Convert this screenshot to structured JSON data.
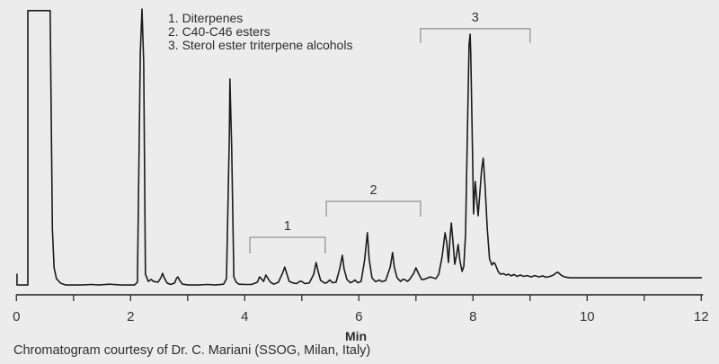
{
  "figure": {
    "background_color": "#ececec",
    "caption": "Chromatogram courtesy of Dr. C. Mariani (SSOG, Milan, Italy)"
  },
  "colors": {
    "trace": "#1b1b1b",
    "axis": "#3a3a3a",
    "tick_label": "#333333",
    "bracket": "#9c9c9c",
    "bracket_label": "#333333"
  },
  "chart_data": {
    "type": "line",
    "title": "",
    "xlabel": "Min",
    "ylabel": "",
    "xlim": [
      0,
      12
    ],
    "grid": false,
    "x_ticks": [
      0,
      1,
      2,
      3,
      4,
      5,
      6,
      7,
      8,
      9,
      10,
      11,
      12
    ],
    "x_tick_labels": [
      {
        "value": 0,
        "label": "0"
      },
      {
        "value": 2,
        "label": "2"
      },
      {
        "value": 4,
        "label": "4"
      },
      {
        "value": 6,
        "label": "6"
      },
      {
        "value": 8,
        "label": "8"
      },
      {
        "value": 10,
        "label": "10"
      },
      {
        "value": 12,
        "label": "12"
      }
    ],
    "peak_groups": [
      {
        "number": "1",
        "label": "1. Diterpenes",
        "t_start": 4.09,
        "t_end": 5.41,
        "bracket_top_signal": 17.5,
        "bracket_drop_signal": 11.7
      },
      {
        "number": "2",
        "label": "2. C40-C46 esters",
        "t_start": 5.43,
        "t_end": 7.08,
        "bracket_top_signal": 30.5,
        "bracket_drop_signal": 25.0
      },
      {
        "number": "3",
        "label": "3. Sterol ester triterpene alcohols",
        "t_start": 7.08,
        "t_end": 9.0,
        "bracket_top_signal": 92.9,
        "bracket_drop_signal": 87.7
      }
    ],
    "major_peaks_min": [
      0.4,
      2.2,
      2.56,
      2.83,
      3.74,
      4.28,
      4.4,
      4.7,
      5.25,
      5.71,
      6.15,
      6.59,
      7.0,
      7.51,
      7.62,
      7.74,
      7.95,
      8.04,
      8.18,
      9.49
    ],
    "signal_axis": "arbitrary units, 0-100 of full scale",
    "trace": [
      [
        0.01,
        4.2
      ],
      [
        0.01,
        0.3
      ],
      [
        0.2,
        0.3
      ],
      [
        0.2,
        99.4
      ],
      [
        0.59,
        99.4
      ],
      [
        0.63,
        20.5
      ],
      [
        0.66,
        6.5
      ],
      [
        0.7,
        2.6
      ],
      [
        0.77,
        1.0
      ],
      [
        0.86,
        0.3
      ],
      [
        1.13,
        0.3
      ],
      [
        1.32,
        0.5
      ],
      [
        1.44,
        0.3
      ],
      [
        1.63,
        0.6
      ],
      [
        1.84,
        0.3
      ],
      [
        2.07,
        0.3
      ],
      [
        2.12,
        1.3
      ],
      [
        2.17,
        83.8
      ],
      [
        2.2,
        100
      ],
      [
        2.23,
        80.5
      ],
      [
        2.26,
        4.2
      ],
      [
        2.31,
        1.6
      ],
      [
        2.36,
        2.3
      ],
      [
        2.4,
        1.6
      ],
      [
        2.48,
        1.3
      ],
      [
        2.53,
        2.9
      ],
      [
        2.56,
        4.5
      ],
      [
        2.59,
        2.9
      ],
      [
        2.64,
        1.0
      ],
      [
        2.7,
        0.5
      ],
      [
        2.77,
        1.0
      ],
      [
        2.81,
        2.9
      ],
      [
        2.83,
        3.2
      ],
      [
        2.86,
        1.9
      ],
      [
        2.91,
        0.6
      ],
      [
        3.02,
        0.3
      ],
      [
        3.18,
        0.3
      ],
      [
        3.35,
        0.5
      ],
      [
        3.49,
        0.3
      ],
      [
        3.63,
        0.6
      ],
      [
        3.68,
        2.6
      ],
      [
        3.73,
        54.5
      ],
      [
        3.74,
        74.7
      ],
      [
        3.77,
        51.3
      ],
      [
        3.81,
        3.2
      ],
      [
        3.85,
        1.3
      ],
      [
        3.9,
        0.6
      ],
      [
        4.0,
        0.5
      ],
      [
        4.12,
        0.5
      ],
      [
        4.22,
        1.3
      ],
      [
        4.26,
        3.2
      ],
      [
        4.29,
        2.6
      ],
      [
        4.33,
        1.6
      ],
      [
        4.37,
        3.9
      ],
      [
        4.4,
        2.9
      ],
      [
        4.45,
        1.3
      ],
      [
        4.51,
        0.6
      ],
      [
        4.59,
        1.3
      ],
      [
        4.67,
        4.9
      ],
      [
        4.7,
        6.8
      ],
      [
        4.74,
        4.2
      ],
      [
        4.78,
        1.6
      ],
      [
        4.85,
        1.0
      ],
      [
        4.91,
        0.8
      ],
      [
        4.96,
        1.6
      ],
      [
        5.0,
        1.6
      ],
      [
        5.05,
        0.8
      ],
      [
        5.13,
        1.0
      ],
      [
        5.21,
        4.2
      ],
      [
        5.25,
        8.4
      ],
      [
        5.29,
        4.9
      ],
      [
        5.33,
        1.9
      ],
      [
        5.4,
        1.0
      ],
      [
        5.44,
        1.1
      ],
      [
        5.49,
        2.1
      ],
      [
        5.54,
        1.1
      ],
      [
        5.6,
        1.3
      ],
      [
        5.66,
        5.8
      ],
      [
        5.71,
        11.0
      ],
      [
        5.74,
        6.2
      ],
      [
        5.79,
        2.3
      ],
      [
        5.85,
        1.1
      ],
      [
        5.9,
        1.6
      ],
      [
        5.93,
        2.1
      ],
      [
        5.98,
        1.1
      ],
      [
        6.04,
        1.6
      ],
      [
        6.1,
        9.1
      ],
      [
        6.15,
        19.2
      ],
      [
        6.18,
        9.7
      ],
      [
        6.23,
        2.9
      ],
      [
        6.29,
        1.5
      ],
      [
        6.33,
        1.8
      ],
      [
        6.36,
        2.1
      ],
      [
        6.4,
        1.5
      ],
      [
        6.47,
        1.9
      ],
      [
        6.55,
        6.8
      ],
      [
        6.59,
        12.0
      ],
      [
        6.62,
        6.8
      ],
      [
        6.67,
        2.9
      ],
      [
        6.73,
        1.6
      ],
      [
        6.77,
        2.3
      ],
      [
        6.8,
        2.3
      ],
      [
        6.85,
        1.6
      ],
      [
        6.89,
        2.3
      ],
      [
        6.96,
        4.5
      ],
      [
        7.0,
        6.5
      ],
      [
        7.05,
        4.2
      ],
      [
        7.1,
        2.3
      ],
      [
        7.14,
        2.3
      ],
      [
        7.21,
        2.9
      ],
      [
        7.25,
        3.2
      ],
      [
        7.3,
        2.9
      ],
      [
        7.35,
        2.6
      ],
      [
        7.4,
        4.2
      ],
      [
        7.46,
        10.7
      ],
      [
        7.51,
        19.2
      ],
      [
        7.54,
        15.6
      ],
      [
        7.57,
        8.4
      ],
      [
        7.6,
        18.2
      ],
      [
        7.62,
        22.7
      ],
      [
        7.65,
        15.6
      ],
      [
        7.68,
        7.8
      ],
      [
        7.71,
        11.0
      ],
      [
        7.74,
        14.9
      ],
      [
        7.77,
        9.1
      ],
      [
        7.81,
        5.2
      ],
      [
        7.84,
        7.1
      ],
      [
        7.87,
        18.8
      ],
      [
        7.9,
        54.5
      ],
      [
        7.93,
        87.0
      ],
      [
        7.95,
        90.9
      ],
      [
        7.96,
        83.8
      ],
      [
        8.0,
        38.3
      ],
      [
        8.01,
        26.0
      ],
      [
        8.04,
        37.7
      ],
      [
        8.09,
        25.3
      ],
      [
        8.15,
        41.6
      ],
      [
        8.18,
        46.1
      ],
      [
        8.21,
        36.7
      ],
      [
        8.25,
        20.5
      ],
      [
        8.29,
        9.7
      ],
      [
        8.33,
        7.5
      ],
      [
        8.36,
        8.4
      ],
      [
        8.39,
        7.8
      ],
      [
        8.44,
        5.2
      ],
      [
        8.48,
        4.2
      ],
      [
        8.53,
        4.4
      ],
      [
        8.58,
        3.9
      ],
      [
        8.62,
        4.2
      ],
      [
        8.67,
        3.6
      ],
      [
        8.72,
        4.1
      ],
      [
        8.77,
        3.4
      ],
      [
        8.83,
        3.9
      ],
      [
        8.89,
        3.4
      ],
      [
        8.95,
        3.7
      ],
      [
        9.02,
        3.2
      ],
      [
        9.08,
        3.7
      ],
      [
        9.16,
        3.2
      ],
      [
        9.22,
        3.6
      ],
      [
        9.28,
        3.1
      ],
      [
        9.35,
        3.4
      ],
      [
        9.41,
        3.9
      ],
      [
        9.46,
        4.7
      ],
      [
        9.49,
        4.9
      ],
      [
        9.54,
        3.9
      ],
      [
        9.6,
        3.2
      ],
      [
        9.7,
        2.9
      ],
      [
        9.95,
        2.9
      ],
      [
        10.74,
        2.9
      ],
      [
        12.0,
        2.9
      ]
    ]
  }
}
